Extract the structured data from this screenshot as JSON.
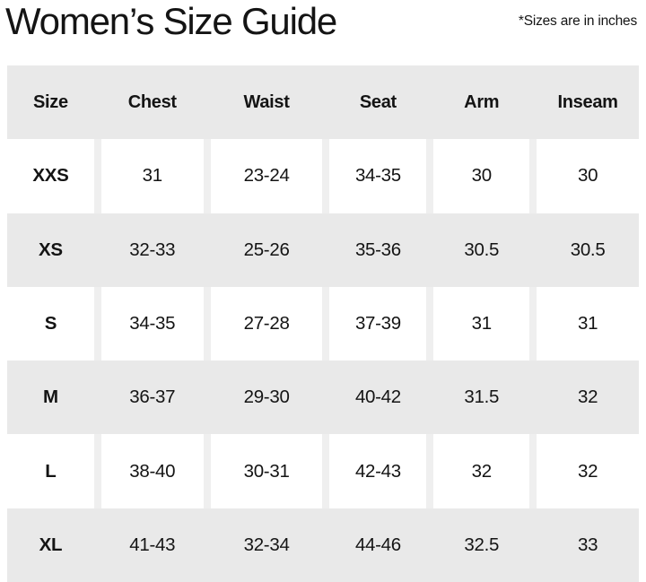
{
  "chart_data": {
    "type": "table",
    "title": "Women’s Size Guide",
    "note": "*Sizes are in inches",
    "columns": [
      "Size",
      "Chest",
      "Waist",
      "Seat",
      "Arm",
      "Inseam"
    ],
    "rows": [
      [
        "XXS",
        "31",
        "23-24",
        "34-35",
        "30",
        "30"
      ],
      [
        "XS",
        "32-33",
        "25-26",
        "35-36",
        "30.5",
        "30.5"
      ],
      [
        "S",
        "34-35",
        "27-28",
        "37-39",
        "31",
        "31"
      ],
      [
        "M",
        "36-37",
        "29-30",
        "40-42",
        "31.5",
        "32"
      ],
      [
        "L",
        "38-40",
        "30-31",
        "42-43",
        "32",
        "32"
      ],
      [
        "XL",
        "41-43",
        "32-34",
        "44-46",
        "32.5",
        "33"
      ]
    ],
    "layout": {
      "header_background": "#e9e9e9",
      "stripe_background": "#e9e9e9",
      "divider_color": "#efefef",
      "text_color": "#141414",
      "zebra_order": [
        "white",
        "gray",
        "white",
        "gray",
        "white",
        "gray"
      ]
    }
  }
}
